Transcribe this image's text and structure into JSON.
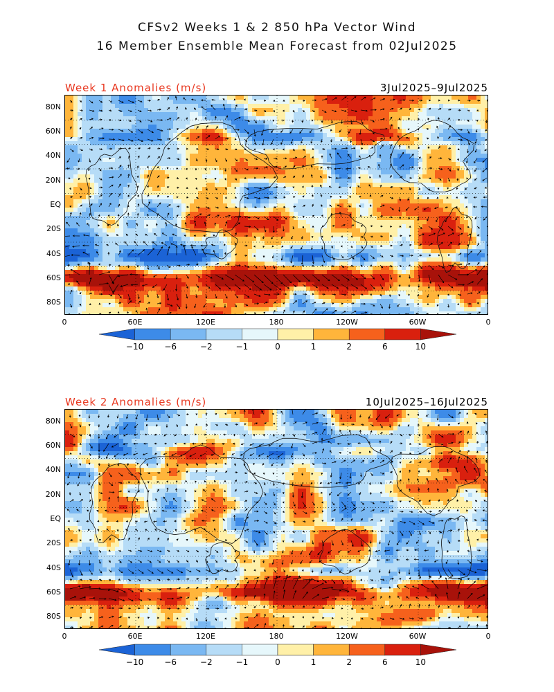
{
  "header": {
    "title_line1": "CFSv2 Weeks 1 & 2 850 hPa Vector Wind",
    "title_line2": "16 Member Ensemble Mean Forecast from 02Jul2025"
  },
  "panels": [
    {
      "label": "Week 1 Anomalies (m/s)",
      "date_range": "3Jul2025–9Jul2025"
    },
    {
      "label": "Week 2 Anomalies (m/s)",
      "date_range": "10Jul2025–16Jul2025"
    }
  ],
  "axes": {
    "lat_ticks": [
      "80N",
      "60N",
      "40N",
      "20N",
      "EQ",
      "20S",
      "40S",
      "60S",
      "80S"
    ],
    "lon_ticks": [
      "0",
      "60E",
      "120E",
      "180",
      "120W",
      "60W",
      "0"
    ]
  },
  "colorbar": {
    "labels": [
      "−10",
      "−6",
      "−2",
      "−1",
      "0",
      "1",
      "2",
      "6",
      "10"
    ],
    "colors": [
      "#1b63d6",
      "#3d8be8",
      "#7ab8f2",
      "#b6dcf7",
      "#e6f7fb",
      "#fff0a8",
      "#ffb53b",
      "#f6611c",
      "#d9200e",
      "#a8120a"
    ]
  },
  "style": {
    "accent_red": "#e8361e"
  }
}
